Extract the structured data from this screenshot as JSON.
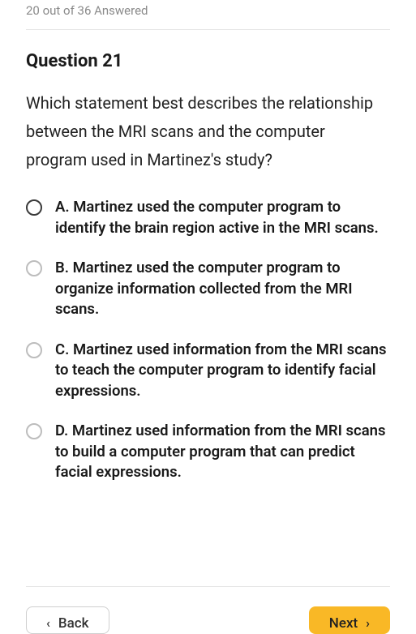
{
  "progress": {
    "text": "20 out of 36 Answered"
  },
  "question": {
    "title": "Question 21",
    "text": "Which statement best describes the relationship between the MRI scans and the computer program used in Martinez's study?"
  },
  "options": [
    {
      "label": "A. Martinez used the computer program to identify the brain region active in the MRI scans."
    },
    {
      "label": "B. Martinez used the computer program to organize information collected from the MRI scans."
    },
    {
      "label": "C. Martinez used information from the MRI scans to teach the computer program to identify facial expressions."
    },
    {
      "label": "D. Martinez used information from the MRI scans to build a computer program that can predict facial expressions."
    }
  ],
  "nav": {
    "back": "Back",
    "next": "Next"
  },
  "colors": {
    "accent": "#f9b826",
    "text": "#1a1a1a",
    "muted": "#8a8a8a",
    "divider": "#e5e5e5",
    "radio_border_inactive": "#bdbdbd",
    "radio_border_active": "#3a3a3a",
    "background": "#ffffff"
  }
}
